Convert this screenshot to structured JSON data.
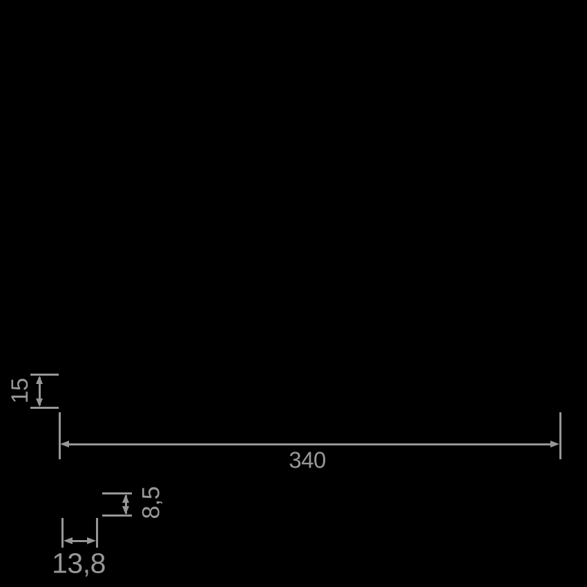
{
  "drawing": {
    "type": "technical-dimension-drawing",
    "dimensions": {
      "height": {
        "label": "15",
        "orientation": "vertical"
      },
      "width": {
        "label": "340",
        "orientation": "horizontal"
      },
      "lip_height": {
        "label": "8,5",
        "orientation": "vertical"
      },
      "lip_width": {
        "label": "13,8",
        "orientation": "horizontal"
      }
    }
  },
  "colors": {
    "background": "#000000",
    "annotation": "#979797"
  }
}
